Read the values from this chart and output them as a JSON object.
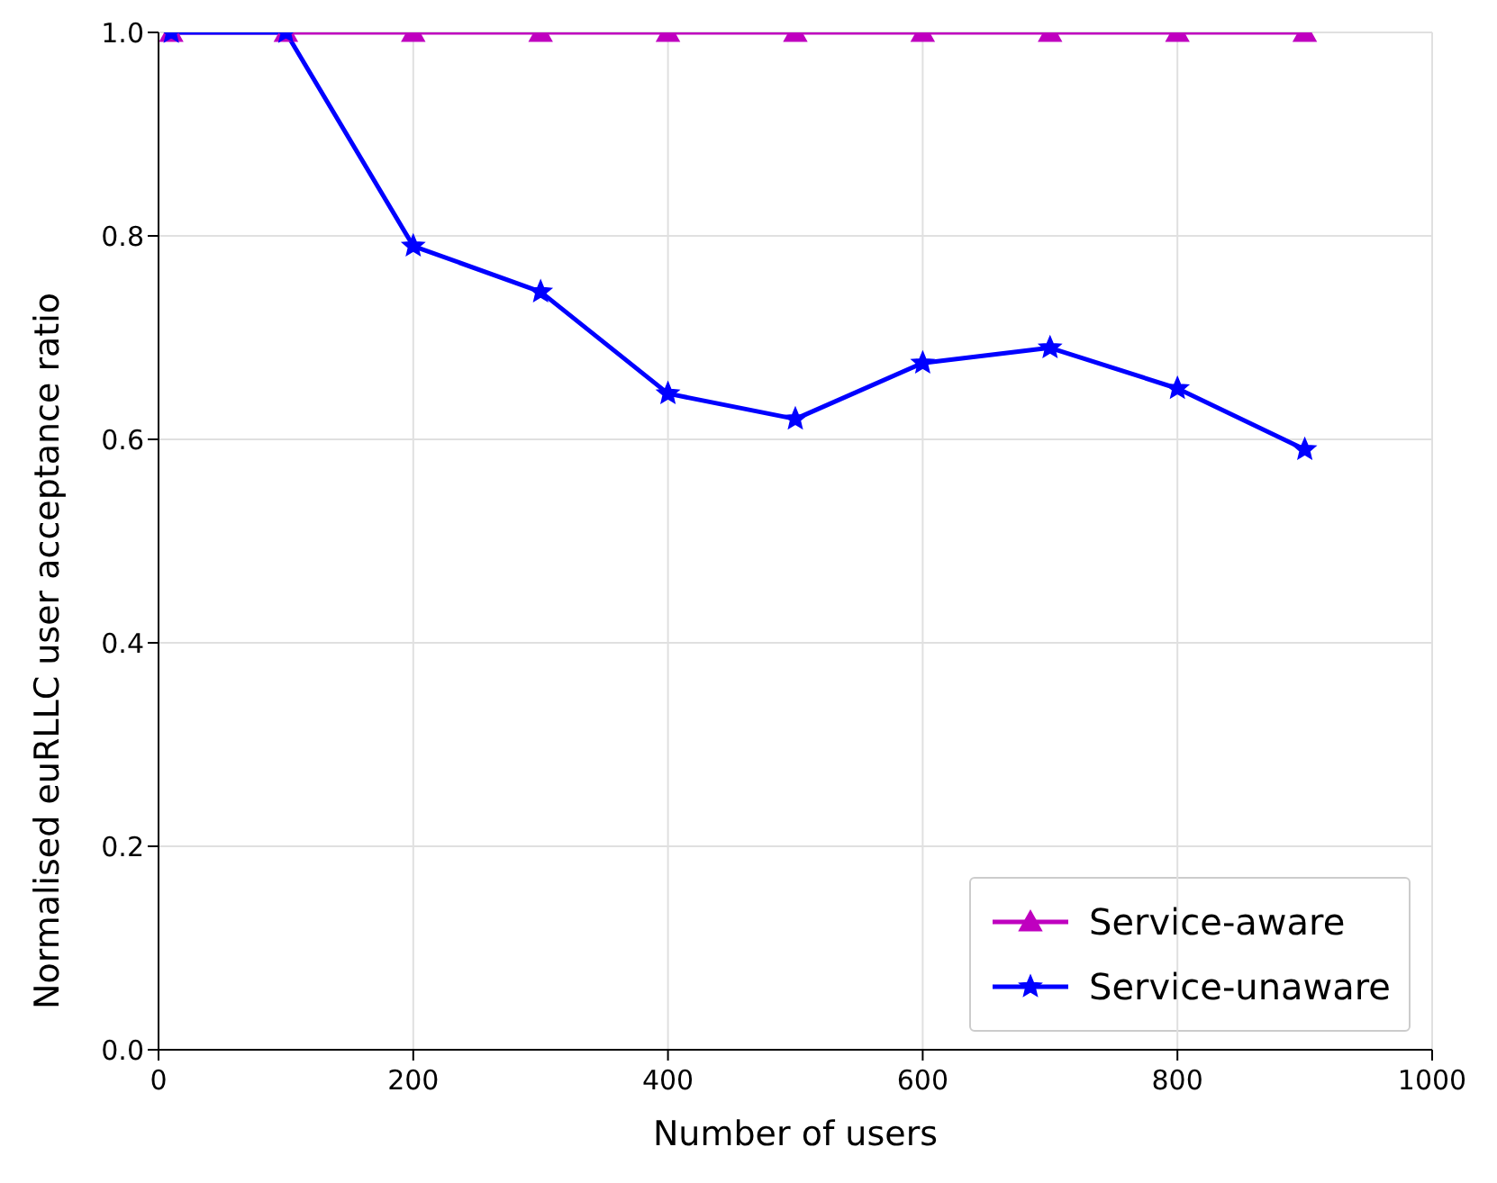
{
  "chart_data": {
    "type": "line",
    "xlabel": "Number of users",
    "ylabel": "Normalised euRLLC user acceptance ratio",
    "x": [
      10,
      100,
      200,
      300,
      400,
      500,
      600,
      700,
      800,
      900
    ],
    "series": [
      {
        "name": "Service-aware",
        "color": "#bf00bf",
        "marker": "triangle",
        "values": [
          1,
          1,
          1,
          1,
          1,
          1,
          1,
          1,
          1,
          1
        ]
      },
      {
        "name": "Service-unaware",
        "color": "#0000ff",
        "marker": "star",
        "values": [
          1,
          1,
          0.79,
          0.745,
          0.645,
          0.62,
          0.675,
          0.69,
          0.65,
          0.59
        ]
      }
    ],
    "xlim": [
      0,
      1000
    ],
    "xticks": [
      0,
      200,
      400,
      600,
      800,
      1000
    ],
    "ylim": [
      0,
      1
    ],
    "yticks": [
      {
        "value": 0,
        "label": "0.0"
      },
      {
        "value": 0.2,
        "label": "0.2"
      },
      {
        "value": 0.4,
        "label": "0.4"
      },
      {
        "value": 0.6,
        "label": "0.6"
      },
      {
        "value": 0.8,
        "label": "0.8"
      },
      {
        "value": 1,
        "label": "1.0"
      }
    ],
    "grid": true,
    "legend": "bottom right"
  }
}
